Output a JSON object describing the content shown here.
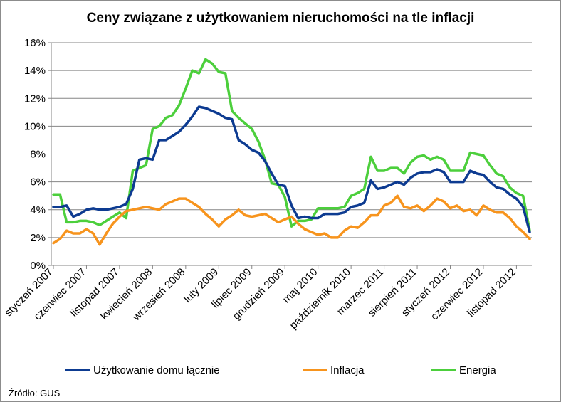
{
  "chart_data": {
    "type": "line",
    "title": "Ceny związane z użytkowaniem nieruchomości na tle inflacji",
    "source": "Źródło: GUS",
    "ylim": [
      0,
      16
    ],
    "yticks": [
      0,
      2,
      4,
      6,
      8,
      10,
      12,
      14,
      16
    ],
    "ytick_labels": [
      "0%",
      "2%",
      "4%",
      "6%",
      "8%",
      "10%",
      "12%",
      "14%",
      "16%"
    ],
    "grid": "horizontal",
    "legend_position": "bottom",
    "xtick_labels": [
      {
        "index": 0,
        "label": "styczeń 2007"
      },
      {
        "index": 5,
        "label": "czerwiec 2007"
      },
      {
        "index": 10,
        "label": "listopad 2007"
      },
      {
        "index": 15,
        "label": "kwiecień 2008"
      },
      {
        "index": 20,
        "label": "wrzesień 2008"
      },
      {
        "index": 25,
        "label": "luty 2009"
      },
      {
        "index": 30,
        "label": "lipiec 2009"
      },
      {
        "index": 35,
        "label": "grudzień 2009"
      },
      {
        "index": 40,
        "label": "maj 2010"
      },
      {
        "index": 45,
        "label": "październik 2010"
      },
      {
        "index": 50,
        "label": "marzec 2011"
      },
      {
        "index": 55,
        "label": "sierpień 2011"
      },
      {
        "index": 60,
        "label": "styczeń 2012"
      },
      {
        "index": 65,
        "label": "czerwiec 2012"
      },
      {
        "index": 70,
        "label": "listopad 2012"
      }
    ],
    "series": [
      {
        "name": "Użytkowanie domu łącznie",
        "color": "#0d3b91",
        "values": [
          4.2,
          4.2,
          4.3,
          3.5,
          3.7,
          4.0,
          4.1,
          4.0,
          4.0,
          4.1,
          4.2,
          4.4,
          5.5,
          7.6,
          7.7,
          7.6,
          9.0,
          9.0,
          9.3,
          9.6,
          10.1,
          10.7,
          11.4,
          11.3,
          11.1,
          10.9,
          10.6,
          10.5,
          9.0,
          8.7,
          8.3,
          8.1,
          7.5,
          6.6,
          5.8,
          5.7,
          4.3,
          3.4,
          3.5,
          3.4,
          3.4,
          3.7,
          3.7,
          3.7,
          3.8,
          4.2,
          4.3,
          4.5,
          6.1,
          5.5,
          5.6,
          5.8,
          6.0,
          5.8,
          6.3,
          6.6,
          6.7,
          6.7,
          6.9,
          6.7,
          6.0,
          6.0,
          6.0,
          6.8,
          6.6,
          6.5,
          6.0,
          5.6,
          5.5,
          5.1,
          4.8,
          4.2,
          2.4
        ]
      },
      {
        "name": "Inflacja",
        "color": "#f7941d",
        "values": [
          1.6,
          1.9,
          2.5,
          2.3,
          2.3,
          2.6,
          2.3,
          1.5,
          2.3,
          3.0,
          3.5,
          3.9,
          4.0,
          4.1,
          4.2,
          4.1,
          4.0,
          4.4,
          4.6,
          4.8,
          4.8,
          4.5,
          4.2,
          3.7,
          3.3,
          2.8,
          3.3,
          3.6,
          4.0,
          3.6,
          3.5,
          3.6,
          3.7,
          3.4,
          3.1,
          3.3,
          3.5,
          3.0,
          2.6,
          2.4,
          2.2,
          2.3,
          2.0,
          2.0,
          2.5,
          2.8,
          2.7,
          3.1,
          3.6,
          3.6,
          4.3,
          4.5,
          5.0,
          4.2,
          4.1,
          4.3,
          3.9,
          4.3,
          4.8,
          4.6,
          4.1,
          4.3,
          3.9,
          4.0,
          3.6,
          4.3,
          4.0,
          3.8,
          3.8,
          3.4,
          2.8,
          2.4,
          1.9
        ]
      },
      {
        "name": "Energia",
        "color": "#4ccf3c",
        "values": [
          5.1,
          5.1,
          3.1,
          3.1,
          3.2,
          3.2,
          3.1,
          2.9,
          3.2,
          3.5,
          3.8,
          3.4,
          6.8,
          7.0,
          7.2,
          9.8,
          10.0,
          10.6,
          10.8,
          11.5,
          12.7,
          14.0,
          13.8,
          14.8,
          14.5,
          13.9,
          13.8,
          11.1,
          10.6,
          10.2,
          9.8,
          8.9,
          7.6,
          5.9,
          5.8,
          4.9,
          2.8,
          3.2,
          3.2,
          3.3,
          4.1,
          4.1,
          4.1,
          4.1,
          4.2,
          5.0,
          5.2,
          5.5,
          7.8,
          6.8,
          6.8,
          7.0,
          7.0,
          6.6,
          7.4,
          7.8,
          7.9,
          7.6,
          7.8,
          7.6,
          6.8,
          6.8,
          6.8,
          8.1,
          8.0,
          7.9,
          7.2,
          6.6,
          6.4,
          5.6,
          5.2,
          5.0,
          2.5
        ]
      }
    ]
  }
}
